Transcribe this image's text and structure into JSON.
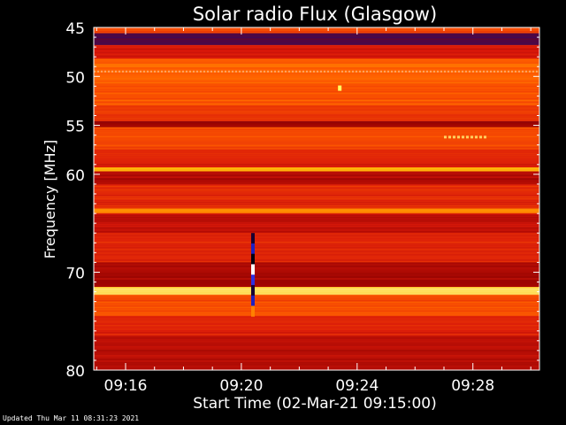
{
  "chart_data": {
    "type": "heatmap",
    "title": "Solar radio Flux (Glasgow)",
    "xlabel": "Start Time (02-Mar-21 09:15:00)",
    "ylabel": "Frequency [MHz]",
    "y_range": [
      45,
      80
    ],
    "y_ticks": [
      45,
      50,
      55,
      60,
      70,
      80
    ],
    "y_tick_labels": [
      "45",
      "50",
      "55",
      "60",
      "70",
      "80"
    ],
    "x_range_minutes": [
      9.25,
      9.5
    ],
    "x_ticks": [
      "09:16",
      "09:20",
      "09:24",
      "09:28"
    ],
    "x_tick_minutes": [
      16,
      20,
      24,
      28
    ],
    "x_start_minute": 14.9,
    "x_end_minute": 30.3,
    "colormap": [
      "#3a0a5c",
      "#8b0000",
      "#d8180a",
      "#ff5a00",
      "#ffb000",
      "#ffffa0"
    ],
    "bands": [
      {
        "from": 45.0,
        "to": 45.6,
        "level": 0.55
      },
      {
        "from": 45.6,
        "to": 46.8,
        "level": 0.05
      },
      {
        "from": 46.8,
        "to": 48.2,
        "level": 0.4
      },
      {
        "from": 48.2,
        "to": 50.6,
        "level": 0.62
      },
      {
        "from": 50.6,
        "to": 53.0,
        "level": 0.58
      },
      {
        "from": 53.0,
        "to": 54.6,
        "level": 0.5
      },
      {
        "from": 54.6,
        "to": 55.2,
        "level": 0.25
      },
      {
        "from": 55.2,
        "to": 57.5,
        "level": 0.55
      },
      {
        "from": 57.5,
        "to": 59.3,
        "level": 0.42
      },
      {
        "from": 59.3,
        "to": 59.7,
        "level": 0.82
      },
      {
        "from": 59.7,
        "to": 61.0,
        "level": 0.3
      },
      {
        "from": 61.0,
        "to": 63.5,
        "level": 0.45
      },
      {
        "from": 63.5,
        "to": 64.0,
        "level": 0.7
      },
      {
        "from": 64.0,
        "to": 66.0,
        "level": 0.35
      },
      {
        "from": 66.0,
        "to": 69.0,
        "level": 0.45
      },
      {
        "from": 69.0,
        "to": 71.5,
        "level": 0.28
      },
      {
        "from": 71.5,
        "to": 72.3,
        "level": 0.92
      },
      {
        "from": 72.3,
        "to": 74.5,
        "level": 0.55
      },
      {
        "from": 74.5,
        "to": 76.5,
        "level": 0.42
      },
      {
        "from": 76.5,
        "to": 80.0,
        "level": 0.32
      }
    ],
    "features": [
      {
        "kind": "burst-line",
        "minute": 20.4,
        "from": 66.0,
        "to": 74.5
      },
      {
        "kind": "spot",
        "minute": 23.4,
        "freq": 51.2
      },
      {
        "kind": "spot-row",
        "from_minute": 27.0,
        "to_minute": 28.5,
        "freq": 56.2
      }
    ]
  },
  "footer": "Updated Thu Mar 11 08:31:23 2021"
}
